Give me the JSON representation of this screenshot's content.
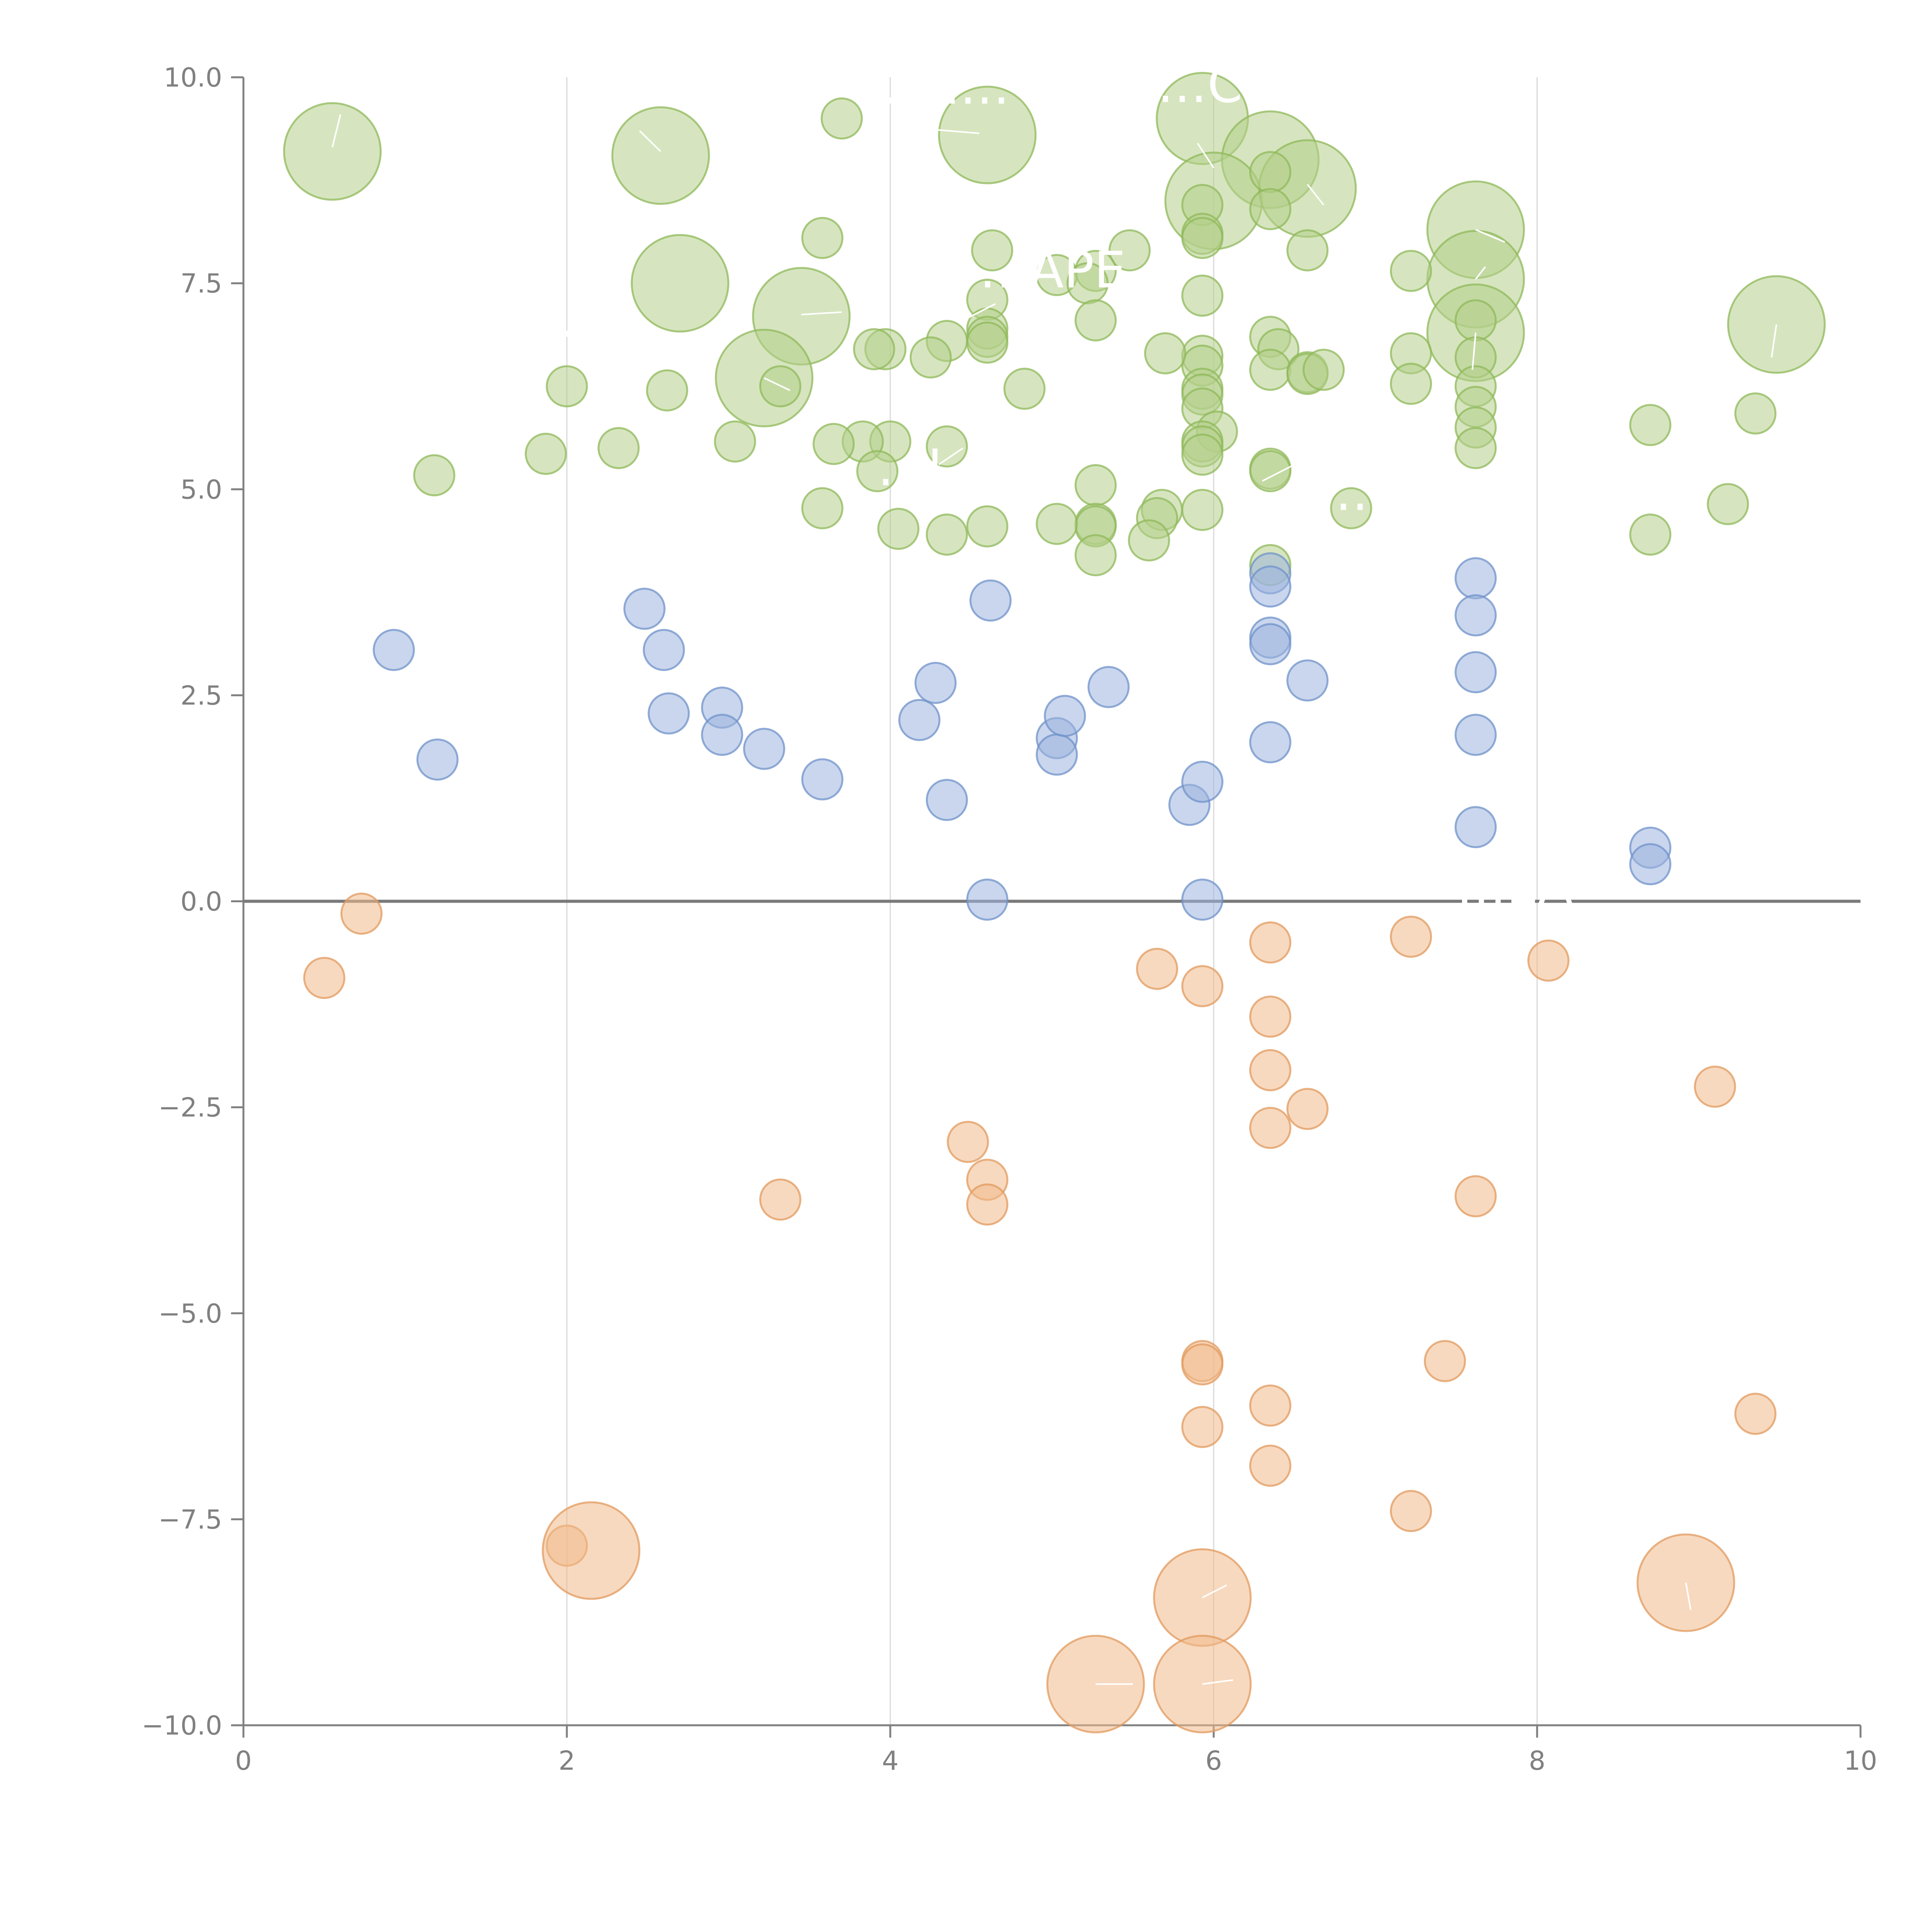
{
  "chart_data": {
    "type": "scatter",
    "title": "",
    "xlabel": "",
    "ylabel": "",
    "xlim": [
      0,
      10
    ],
    "ylim": [
      -10,
      10
    ],
    "x_ticks": [
      "0",
      "2",
      "4",
      "6",
      "8",
      "10"
    ],
    "y_ticks": [
      "10.0",
      "7.5",
      "5.0",
      "2.5",
      "0.0",
      "−2.5",
      "−5.0",
      "−7.5",
      "−10.0"
    ],
    "x_tick_values": [
      0,
      2,
      4,
      6,
      8,
      10
    ],
    "y_tick_values": [
      10,
      7.5,
      5,
      2.5,
      0,
      -2.5,
      -5,
      -7.5,
      -10
    ],
    "grid": {
      "x": true,
      "y": false
    },
    "zero_line": true,
    "colors": {
      "green_fill": "#b5d08a",
      "green_stroke": "#8fb85a",
      "blue_fill": "#9db5de",
      "blue_stroke": "#6f92c9",
      "orange_fill": "#f0b98a",
      "orange_stroke": "#e19a5e",
      "axis": "#808080",
      "grid": "#d9d9d9"
    },
    "series": [
      {
        "color": "green",
        "points": [
          [
            0.55,
            9.1,
            3
          ],
          [
            2.58,
            9.05,
            3
          ],
          [
            3.7,
            9.5,
            1
          ],
          [
            4.6,
            9.3,
            3
          ],
          [
            5.93,
            9.5,
            2.5
          ],
          [
            6.35,
            9.0,
            3
          ],
          [
            6.0,
            8.5,
            3
          ],
          [
            6.58,
            8.65,
            3
          ],
          [
            6.35,
            8.85,
            1
          ],
          [
            5.93,
            8.45,
            1
          ],
          [
            5.93,
            8.1,
            1
          ],
          [
            5.93,
            8.05,
            1
          ],
          [
            6.35,
            8.4,
            1
          ],
          [
            7.62,
            8.15,
            3
          ],
          [
            7.62,
            7.55,
            3
          ],
          [
            7.62,
            6.9,
            3
          ],
          [
            9.48,
            7.0,
            3
          ],
          [
            2.7,
            7.5,
            3
          ],
          [
            3.45,
            7.1,
            3
          ],
          [
            3.22,
            6.35,
            3
          ],
          [
            3.58,
            8.05,
            1
          ],
          [
            4.63,
            7.9,
            1
          ],
          [
            5.48,
            7.9,
            1
          ],
          [
            5.03,
            7.6,
            1
          ],
          [
            5.27,
            7.65,
            1
          ],
          [
            5.22,
            7.5,
            1
          ],
          [
            4.6,
            7.3,
            1
          ],
          [
            5.27,
            7.05,
            1
          ],
          [
            5.93,
            7.35,
            1
          ],
          [
            6.58,
            7.9,
            1
          ],
          [
            7.22,
            7.65,
            1
          ],
          [
            7.22,
            6.65,
            1
          ],
          [
            7.22,
            6.28,
            1
          ],
          [
            7.62,
            7.05,
            1
          ],
          [
            7.62,
            6.6,
            1
          ],
          [
            7.62,
            6.25,
            1
          ],
          [
            7.62,
            6.0,
            1
          ],
          [
            7.62,
            5.75,
            1
          ],
          [
            7.62,
            5.5,
            1
          ],
          [
            8.7,
            5.78,
            1
          ],
          [
            9.35,
            5.92,
            1
          ],
          [
            8.7,
            4.45,
            1
          ],
          [
            9.18,
            4.82,
            1
          ],
          [
            6.85,
            4.77,
            1
          ],
          [
            6.35,
            5.25,
            1
          ],
          [
            6.35,
            5.22,
            1
          ],
          [
            6.35,
            6.85,
            1
          ],
          [
            6.4,
            6.7,
            1
          ],
          [
            6.35,
            6.45,
            1
          ],
          [
            6.58,
            6.42,
            1
          ],
          [
            6.58,
            6.4,
            1
          ],
          [
            6.68,
            6.45,
            1
          ],
          [
            5.93,
            6.62,
            1
          ],
          [
            5.93,
            6.5,
            1
          ],
          [
            5.93,
            6.22,
            1
          ],
          [
            5.93,
            6.15,
            1
          ],
          [
            5.93,
            5.98,
            1
          ],
          [
            6.02,
            5.7,
            1
          ],
          [
            5.93,
            5.58,
            1
          ],
          [
            5.93,
            5.52,
            1
          ],
          [
            5.93,
            5.42,
            1
          ],
          [
            5.93,
            4.75,
            1
          ],
          [
            5.7,
            6.65,
            1
          ],
          [
            5.68,
            4.75,
            1
          ],
          [
            5.65,
            4.65,
            1
          ],
          [
            5.6,
            4.38,
            1
          ],
          [
            5.27,
            5.05,
            1
          ],
          [
            5.27,
            4.58,
            1
          ],
          [
            5.27,
            4.55,
            1
          ],
          [
            5.27,
            4.2,
            1
          ],
          [
            5.03,
            4.58,
            1
          ],
          [
            4.83,
            6.22,
            1
          ],
          [
            4.6,
            6.95,
            1
          ],
          [
            4.6,
            6.85,
            1
          ],
          [
            4.6,
            6.78,
            1
          ],
          [
            4.35,
            6.8,
            1
          ],
          [
            4.25,
            6.6,
            1
          ],
          [
            3.97,
            6.7,
            1
          ],
          [
            3.9,
            6.7,
            1
          ],
          [
            4.35,
            5.52,
            1
          ],
          [
            4.0,
            5.58,
            1
          ],
          [
            3.83,
            5.58,
            1
          ],
          [
            3.65,
            5.55,
            1
          ],
          [
            3.92,
            5.22,
            1
          ],
          [
            3.58,
            4.77,
            1
          ],
          [
            4.05,
            4.52,
            1
          ],
          [
            4.35,
            4.45,
            1
          ],
          [
            4.6,
            4.55,
            1
          ],
          [
            3.32,
            6.25,
            1
          ],
          [
            2.62,
            6.2,
            1
          ],
          [
            2.32,
            5.5,
            1
          ],
          [
            2.0,
            6.25,
            1
          ],
          [
            1.87,
            5.43,
            1
          ],
          [
            1.18,
            5.17,
            1
          ],
          [
            3.04,
            5.58,
            1
          ],
          [
            6.35,
            4.08,
            1
          ]
        ]
      },
      {
        "color": "blue",
        "points": [
          [
            0.93,
            3.05
          ],
          [
            1.2,
            1.72
          ],
          [
            2.48,
            3.55
          ],
          [
            2.6,
            3.05
          ],
          [
            2.63,
            2.28
          ],
          [
            2.96,
            2.35
          ],
          [
            2.96,
            2.02
          ],
          [
            3.22,
            1.85
          ],
          [
            3.58,
            1.48
          ],
          [
            4.18,
            2.2
          ],
          [
            4.28,
            2.65
          ],
          [
            4.35,
            1.23
          ],
          [
            4.62,
            3.65
          ],
          [
            4.6,
            0.02
          ],
          [
            5.03,
            1.98
          ],
          [
            5.03,
            1.78
          ],
          [
            5.08,
            2.25
          ],
          [
            5.35,
            2.6
          ],
          [
            5.85,
            1.17
          ],
          [
            5.93,
            1.45
          ],
          [
            5.93,
            0.02
          ],
          [
            6.35,
            3.98
          ],
          [
            6.35,
            3.82
          ],
          [
            6.35,
            3.2
          ],
          [
            6.35,
            3.12
          ],
          [
            6.35,
            1.93
          ],
          [
            6.58,
            2.68
          ],
          [
            7.62,
            3.92
          ],
          [
            7.62,
            3.47
          ],
          [
            7.62,
            2.78
          ],
          [
            7.62,
            2.02
          ],
          [
            7.62,
            0.9
          ],
          [
            8.7,
            0.65
          ],
          [
            8.7,
            0.45
          ]
        ]
      },
      {
        "color": "orange",
        "points": [
          [
            0.5,
            -0.93,
            1
          ],
          [
            0.73,
            -0.15,
            1
          ],
          [
            2.0,
            -7.82,
            1
          ],
          [
            2.15,
            -7.88,
            3
          ],
          [
            3.32,
            -3.62,
            1
          ],
          [
            4.48,
            -2.92,
            1
          ],
          [
            4.6,
            -3.38,
            1
          ],
          [
            4.6,
            -3.68,
            1
          ],
          [
            5.27,
            -9.5,
            3
          ],
          [
            5.65,
            -0.82,
            1
          ],
          [
            5.93,
            -1.03,
            1
          ],
          [
            5.93,
            -5.58,
            1
          ],
          [
            5.93,
            -5.62,
            1
          ],
          [
            5.93,
            -6.38,
            1
          ],
          [
            5.93,
            -8.45,
            3
          ],
          [
            5.93,
            -9.5,
            3
          ],
          [
            6.35,
            -0.5,
            1
          ],
          [
            6.35,
            -1.4,
            1
          ],
          [
            6.35,
            -2.05,
            1
          ],
          [
            6.35,
            -2.75,
            1
          ],
          [
            6.58,
            -2.52,
            1
          ],
          [
            6.35,
            -6.12,
            1
          ],
          [
            6.35,
            -6.85,
            1
          ],
          [
            7.22,
            -0.43,
            1
          ],
          [
            7.22,
            -7.4,
            1
          ],
          [
            7.43,
            -5.58,
            1
          ],
          [
            7.62,
            -3.58,
            1
          ],
          [
            8.07,
            -0.72,
            1
          ],
          [
            8.92,
            -8.27,
            3
          ],
          [
            9.1,
            -2.25,
            1
          ],
          [
            9.35,
            -6.22,
            1
          ]
        ]
      }
    ],
    "annotations": [
      {
        "text": "…M…",
        "x": 3.85,
        "y": 9.68,
        "leader": [
          4.05,
          9.4,
          4.55,
          9.32
        ]
      },
      {
        "text": "…CE",
        "x": 5.65,
        "y": 9.7,
        "leader": [
          5.9,
          9.2,
          6.0,
          8.9
        ]
      },
      {
        "text": "…APE",
        "x": 4.55,
        "y": 7.45,
        "leader": [
          4.45,
          7.05,
          4.65,
          7.25
        ]
      },
      {
        "text": "…I…",
        "x": 3.92,
        "y": 5.05,
        "leader": [
          4.3,
          5.3,
          4.45,
          5.5
        ]
      },
      {
        "text": "…O",
        "x": 6.75,
        "y": 4.75,
        "leader": [
          6.3,
          5.1,
          6.5,
          5.3
        ]
      },
      {
        "text": "…",
        "x": 1.95,
        "y": 6.85,
        "leader": [
          2.05,
          6.7,
          2.15,
          6.55
        ]
      },
      {
        "text": "…EA",
        "x": 7.5,
        "y": -0.02,
        "leader": [
          7.95,
          0.08,
          7.95,
          0.35
        ]
      },
      {
        "text": "",
        "x": 0,
        "y": 0,
        "leader": [
          0.55,
          9.15,
          0.6,
          9.55
        ]
      },
      {
        "text": "",
        "x": 0,
        "y": 0,
        "leader": [
          2.58,
          9.1,
          2.45,
          9.35
        ]
      },
      {
        "text": "",
        "x": 0,
        "y": 0,
        "leader": [
          3.45,
          7.12,
          3.7,
          7.15
        ]
      },
      {
        "text": "",
        "x": 0,
        "y": 0,
        "leader": [
          3.22,
          6.35,
          3.38,
          6.2
        ]
      },
      {
        "text": "",
        "x": 0,
        "y": 0,
        "leader": [
          6.58,
          8.7,
          6.68,
          8.45
        ]
      },
      {
        "text": "",
        "x": 0,
        "y": 0,
        "leader": [
          7.62,
          8.15,
          7.8,
          8.0
        ]
      },
      {
        "text": "",
        "x": 0,
        "y": 0,
        "leader": [
          7.62,
          7.55,
          7.68,
          7.7
        ]
      },
      {
        "text": "",
        "x": 0,
        "y": 0,
        "leader": [
          7.62,
          6.9,
          7.6,
          6.45
        ]
      },
      {
        "text": "",
        "x": 0,
        "y": 0,
        "leader": [
          9.48,
          7.0,
          9.45,
          6.6
        ]
      },
      {
        "text": "",
        "x": 0,
        "y": 0,
        "leader": [
          5.93,
          -8.45,
          6.08,
          -8.3
        ]
      },
      {
        "text": "",
        "x": 0,
        "y": 0,
        "leader": [
          5.93,
          -9.5,
          6.12,
          -9.45
        ]
      },
      {
        "text": "",
        "x": 0,
        "y": 0,
        "leader": [
          5.27,
          -9.5,
          5.5,
          -9.5
        ]
      },
      {
        "text": "",
        "x": 0,
        "y": 0,
        "leader": [
          8.92,
          -8.27,
          8.95,
          -8.6
        ]
      }
    ]
  }
}
